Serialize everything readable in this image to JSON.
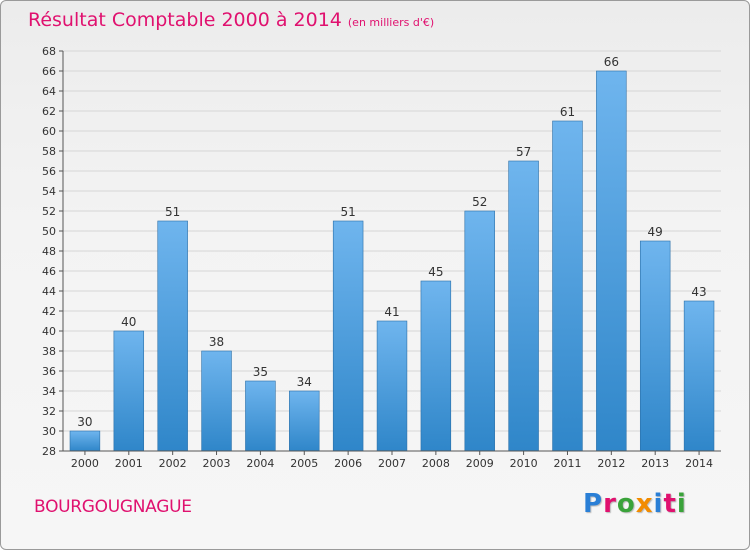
{
  "header": {
    "title": "Résultat Comptable 2000 à 2014",
    "subtitle": "(en milliers d'€)"
  },
  "footer": {
    "commune": "BOURGOUGNAGUE",
    "logo_text": "Proxiti",
    "logo_colors": [
      "#2a7fd6",
      "#e0116f",
      "#3aa33a",
      "#f28c00",
      "#2a7fd6",
      "#e0116f",
      "#3aa33a"
    ]
  },
  "chart_data": {
    "type": "bar",
    "title": "Résultat Comptable 2000 à 2014",
    "subtitle": "(en milliers d'€)",
    "categories": [
      "2000",
      "2001",
      "2002",
      "2003",
      "2004",
      "2005",
      "2006",
      "2007",
      "2008",
      "2009",
      "2010",
      "2011",
      "2012",
      "2013",
      "2014"
    ],
    "values": [
      30,
      40,
      51,
      38,
      35,
      34,
      51,
      41,
      45,
      52,
      57,
      61,
      66,
      49,
      43
    ],
    "ylim": [
      28,
      68
    ],
    "ytick_step": 2,
    "grid": true,
    "bar_color_light": "#6fb5ee",
    "bar_color_dark": "#2f86c9",
    "xlabel": "",
    "ylabel": ""
  }
}
